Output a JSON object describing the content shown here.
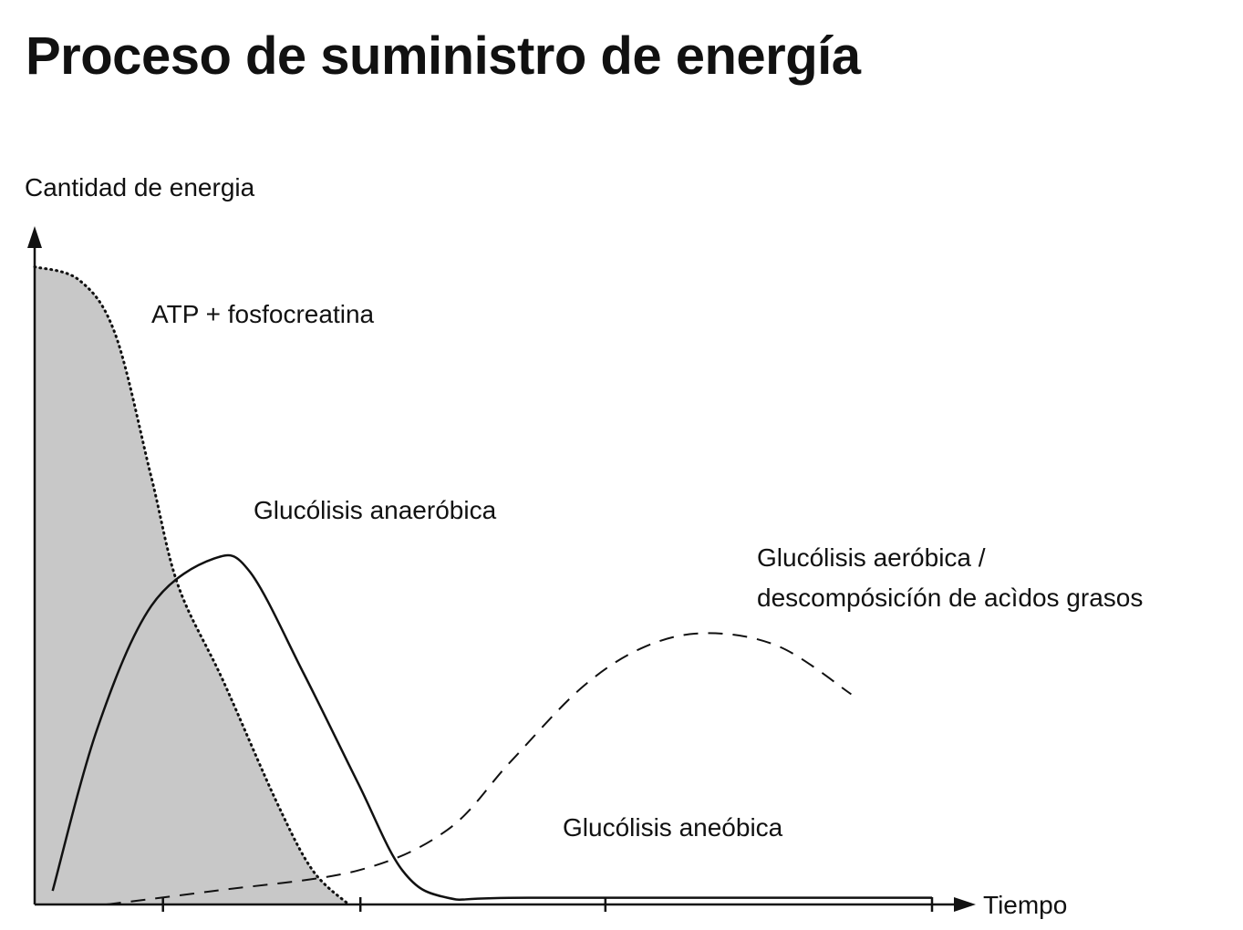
{
  "title": "Proceso de suministro de energía",
  "chart_data": {
    "type": "line",
    "ylabel": "Cantidad de energia",
    "xlabel": "Tiempo",
    "x_ticks": 4,
    "grid": false,
    "series": [
      {
        "name": "ATP + fosfocreatina",
        "style": "dotted-filled",
        "fill": "#c8c8c8",
        "points": [
          [
            0,
            0.94
          ],
          [
            0.05,
            0.92
          ],
          [
            0.09,
            0.84
          ],
          [
            0.13,
            0.63
          ],
          [
            0.16,
            0.47
          ],
          [
            0.21,
            0.33
          ],
          [
            0.27,
            0.15
          ],
          [
            0.31,
            0.05
          ],
          [
            0.35,
            0.0
          ]
        ]
      },
      {
        "name": "Glucólisis anaeróbica",
        "style": "solid",
        "points": [
          [
            0.02,
            0.02
          ],
          [
            0.07,
            0.26
          ],
          [
            0.13,
            0.44
          ],
          [
            0.2,
            0.51
          ],
          [
            0.24,
            0.49
          ],
          [
            0.3,
            0.34
          ],
          [
            0.36,
            0.18
          ],
          [
            0.41,
            0.05
          ],
          [
            0.46,
            0.01
          ],
          [
            0.55,
            0.01
          ],
          [
            1.0,
            0.01
          ]
        ]
      },
      {
        "name": "Glucólisis aeróbica / descomposición de ácidos grasos",
        "style": "dashed",
        "points": [
          [
            0.08,
            0.0
          ],
          [
            0.2,
            0.02
          ],
          [
            0.36,
            0.05
          ],
          [
            0.46,
            0.11
          ],
          [
            0.53,
            0.21
          ],
          [
            0.61,
            0.32
          ],
          [
            0.68,
            0.38
          ],
          [
            0.75,
            0.4
          ],
          [
            0.83,
            0.38
          ],
          [
            0.91,
            0.31
          ]
        ]
      }
    ],
    "annotations": {
      "atp": "ATP + fosfocreatina",
      "anaerobica": "Glucólisis anaeróbica",
      "aerobica_1": "Glucólisis aeróbica /",
      "aerobica_2": "descompósicíón de acìdos grasos",
      "aneobica": "Glucólisis aneóbica"
    }
  }
}
